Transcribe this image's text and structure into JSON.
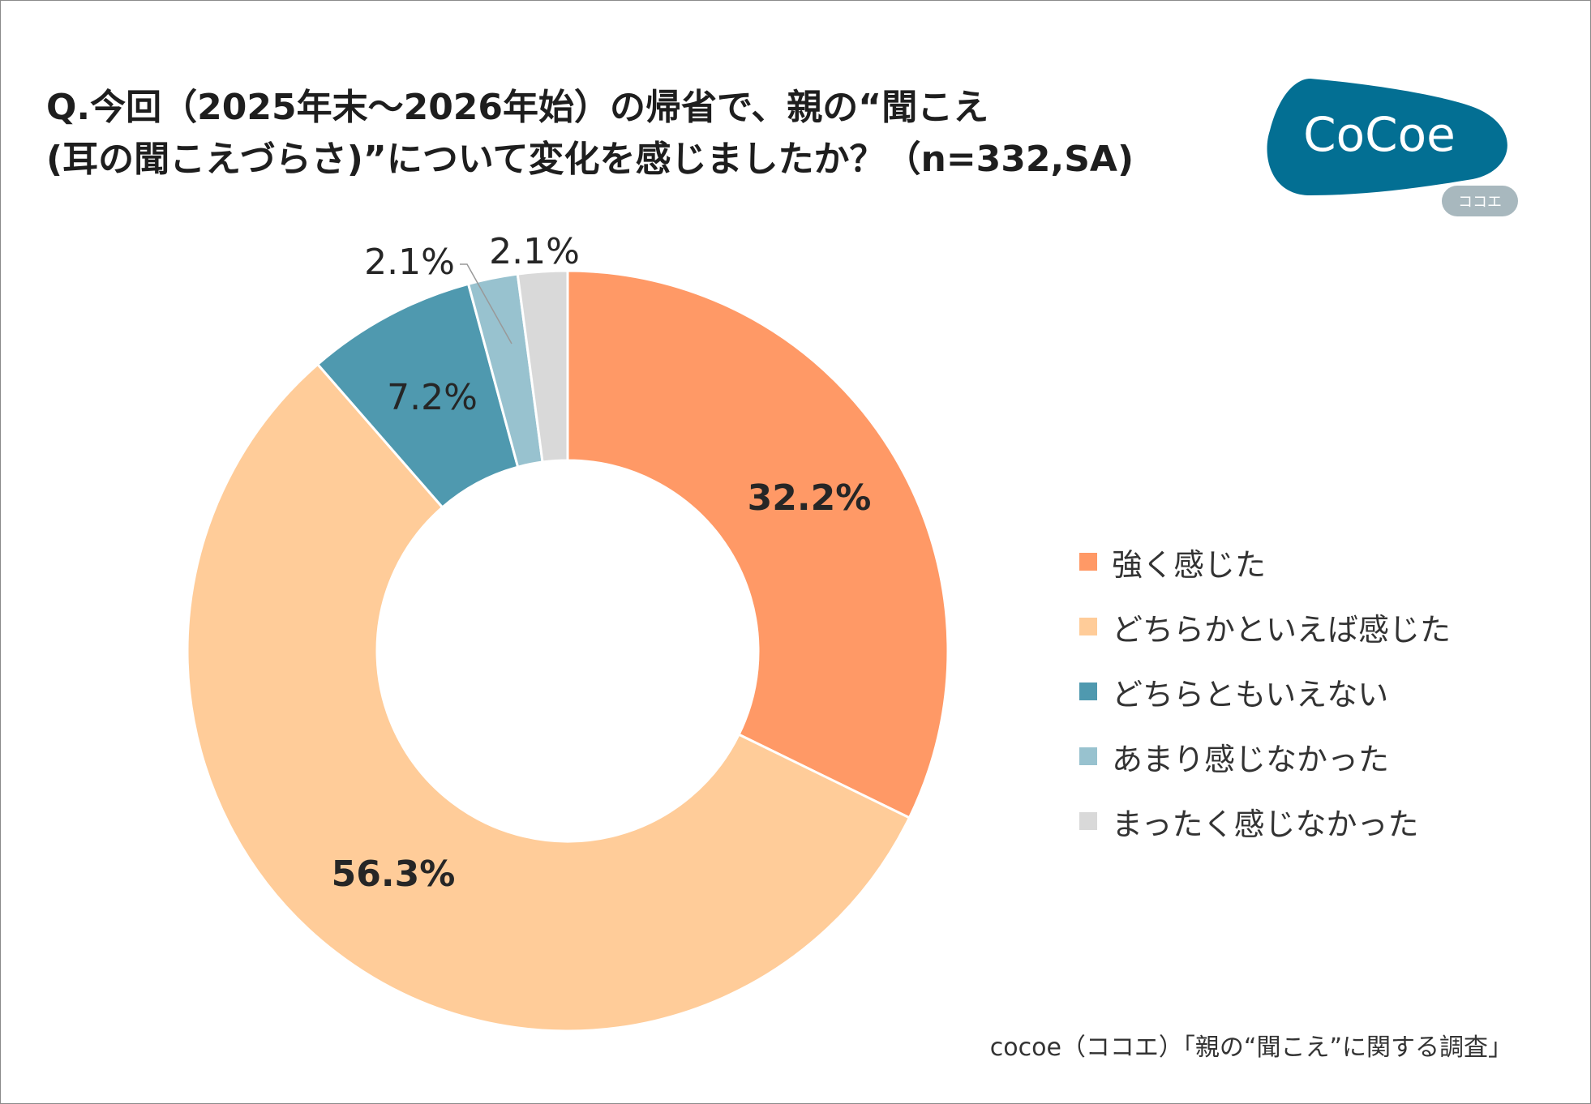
{
  "title_lines": [
    "Q.今回（2025年末～2026年始）の帰省で、親の“聞こえ",
    "(耳の聞こえづらさ)”について変化を感じましたか？（n=332,SA)"
  ],
  "logo": {
    "text": "CoCoe",
    "subtext": "ココエ",
    "color": "#036f93"
  },
  "footer": "cocoe（ココエ）「親の“聞こえ”に関する調査」",
  "chart_data": {
    "type": "pie",
    "donut": true,
    "start": "top, clockwise",
    "categories": [
      "強く感じた",
      "どちらかといえば感じた",
      "どちらともいえない",
      "あまり感じなかった",
      "まったく感じなかった"
    ],
    "values": [
      32.2,
      56.3,
      7.2,
      2.1,
      2.1
    ],
    "labels": [
      "32.2%",
      "56.3%",
      "7.2%",
      "2.1%",
      "2.1%"
    ],
    "colors": [
      "#ff9966",
      "#ffcc99",
      "#4f99af",
      "#98c2cf",
      "#d9d9d9"
    ],
    "legend_position": "right"
  }
}
